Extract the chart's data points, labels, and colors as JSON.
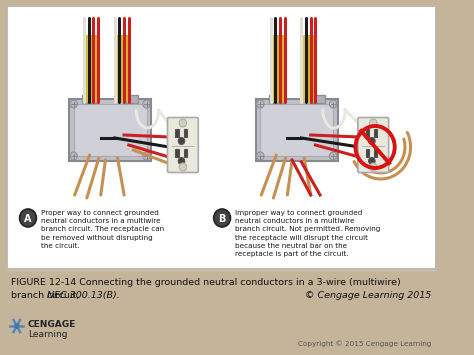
{
  "bg_color": "#c4b49a",
  "panel_color": "#f5f2ee",
  "wire_red": "#cc2020",
  "wire_black": "#1a1a1a",
  "wire_white": "#e8e8e0",
  "wire_bare": "#c89050",
  "conduit_yellow": "#d4b830",
  "box_gray": "#c0c0c8",
  "box_edge": "#888890",
  "outlet_body": "#e8e8dc",
  "outlet_edge": "#aaaaaa",
  "caption_A": "Proper way to connect grounded\nneutral conductors in a multiwire\nbranch circuit. The receptacle can\nbe removed without disrupting\nthe circuit.",
  "caption_B": "Improper way to connect grounded\nneutral conductors in a multiwire\nbranch circuit. Not permitted. Removing\nthe receptacle will disrupt the circuit\nbecause the neutral bar on the\nreceptacle is part of the circuit.",
  "fig_caption_1": "FIGURE 12-14 Connecting the grounded neutral conductors in a 3-wire (multiwire)",
  "fig_caption_2": "branch circuit, ",
  "fig_caption_italic": "NEC 300.13(B).",
  "fig_caption_right": "© Cengage Learning 2015",
  "cengage_bold": "CENGAGE",
  "cengage_normal": "Learning",
  "copyright_bottom": "Copyright © 2015 Cengage Learning",
  "figsize": [
    4.74,
    3.55
  ],
  "dpi": 100
}
